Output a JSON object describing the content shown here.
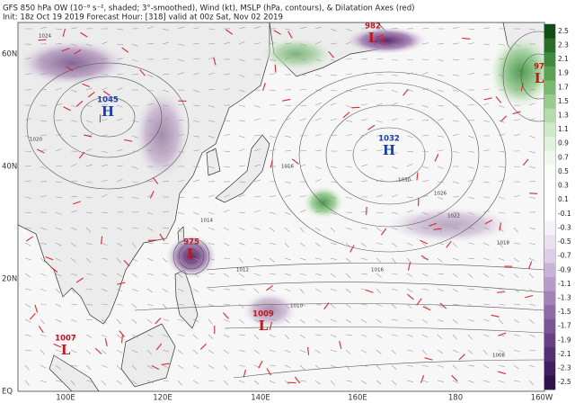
{
  "header": {
    "title": "GFS 850 hPa OW (10⁻⁸ s⁻², shaded; 3°-smoothed), Wind (kt), MSLP (hPa, contours), & Dilatation Axes (red)",
    "subtitle": "Init: 18z Oct 19 2019   Forecast Hour: [318]   valid at 00z Sat, Nov 02 2019"
  },
  "latitude_labels": [
    "60N",
    "40N",
    "20N",
    "EQ"
  ],
  "longitude_labels": [
    "100E",
    "120E",
    "140E",
    "160E",
    "180",
    "160W"
  ],
  "colorbar_labels": [
    "2.5",
    "2.3",
    "2.1",
    "1.9",
    "1.7",
    "1.5",
    "1.3",
    "1.1",
    "0.9",
    "0.7",
    "0.5",
    "0.3",
    "0.1",
    "-0.1",
    "-0.3",
    "-0.5",
    "-0.7",
    "-0.9",
    "-1.1",
    "-1.3",
    "-1.5",
    "-1.7",
    "-1.9",
    "-2.1",
    "-2.3",
    "-2.5"
  ],
  "pressure_centers": [
    {
      "symbol": "H",
      "value": "1045"
    },
    {
      "symbol": "H",
      "value": "1032"
    },
    {
      "symbol": "L",
      "value": "975"
    },
    {
      "symbol": "L",
      "value": "1009"
    },
    {
      "symbol": "L",
      "value": "1007"
    },
    {
      "symbol": "L",
      "value": "982"
    },
    {
      "symbol": "L",
      "value": "97"
    }
  ],
  "contour_labels": [
    "1024",
    "1020",
    "1016",
    "1030",
    "1026",
    "1022",
    "1018",
    "1014",
    "1012",
    "1016",
    "1010",
    "1008"
  ]
}
